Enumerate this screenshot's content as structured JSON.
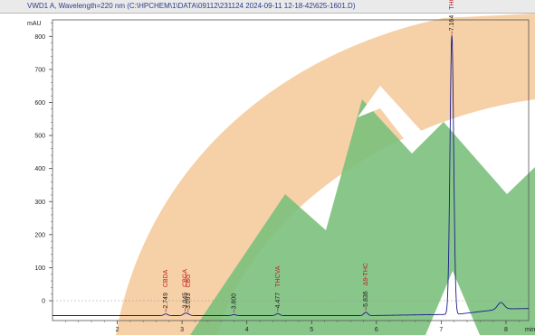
{
  "header": {
    "title": "VWD1 A, Wavelength=220 nm (C:\\HPCHEM\\1\\DATA\\09112\\231124 2024-09-11 12-18-42\\625-1601.D)"
  },
  "chart_data": {
    "type": "line",
    "ylabel": "mAU",
    "xlabel": "min",
    "xlim": [
      1.0,
      8.35
    ],
    "ylim": [
      -60,
      850
    ],
    "x_ticks": [
      2,
      3,
      4,
      5,
      6,
      7,
      8
    ],
    "y_ticks": [
      0,
      100,
      200,
      300,
      400,
      500,
      600,
      700,
      800
    ],
    "grid": false,
    "baseline_y": -45,
    "peaks": [
      {
        "rt_label": "2.749",
        "compound": "CBDA",
        "x": 2.749,
        "height": 5
      },
      {
        "rt_label": "3.045",
        "compound": "CBGA",
        "x": 3.045,
        "height": 6
      },
      {
        "rt_label": "3.093",
        "compound": "CBG",
        "x": 3.093,
        "height": 4
      },
      {
        "rt_label": "3.800",
        "compound": "",
        "x": 3.8,
        "height": 3
      },
      {
        "rt_label": "4.477",
        "compound": "THCVA",
        "x": 4.477,
        "height": 6
      },
      {
        "rt_label": "5.836",
        "compound": "Δ9-THC",
        "x": 5.836,
        "height": 10
      },
      {
        "rt_label": "7.164",
        "compound": "THCA",
        "x": 7.164,
        "height": 845
      }
    ],
    "minor_peaks": [
      {
        "x": 7.92,
        "height": 20
      }
    ]
  },
  "colors": {
    "trace": "#1a1a8c",
    "label": "#c02020",
    "orange_logo": "#f4c896",
    "green_logo": "#7cc07c"
  }
}
